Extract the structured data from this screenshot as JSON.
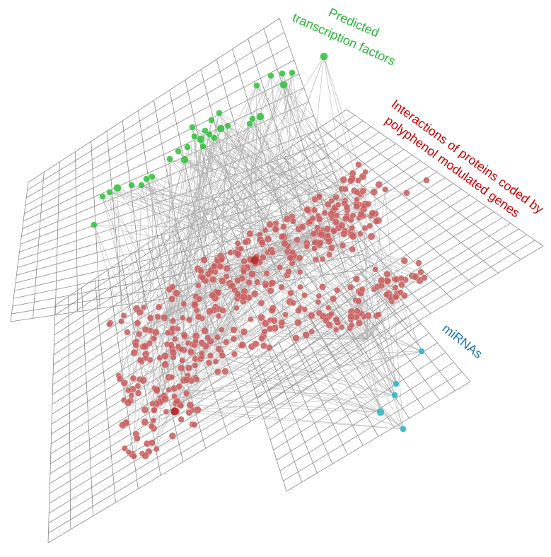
{
  "labels": {
    "tf_line1": "Predicted",
    "tf_line2": "transcription factors",
    "ppi_line1": "Interactions of proteins coded by",
    "ppi_line2": "polyphenol modulated genes",
    "mirna": "miRNAs"
  },
  "colors": {
    "tf": "#2bb33a",
    "ppi": "#cc0000",
    "mirna": "#1a73b8",
    "tf_node": "#33c23f",
    "ppi_node": "#c96060",
    "mirna_node": "#2ab6c9",
    "grid": "#8a8a8a",
    "edge": "#b3b3b3"
  }
}
